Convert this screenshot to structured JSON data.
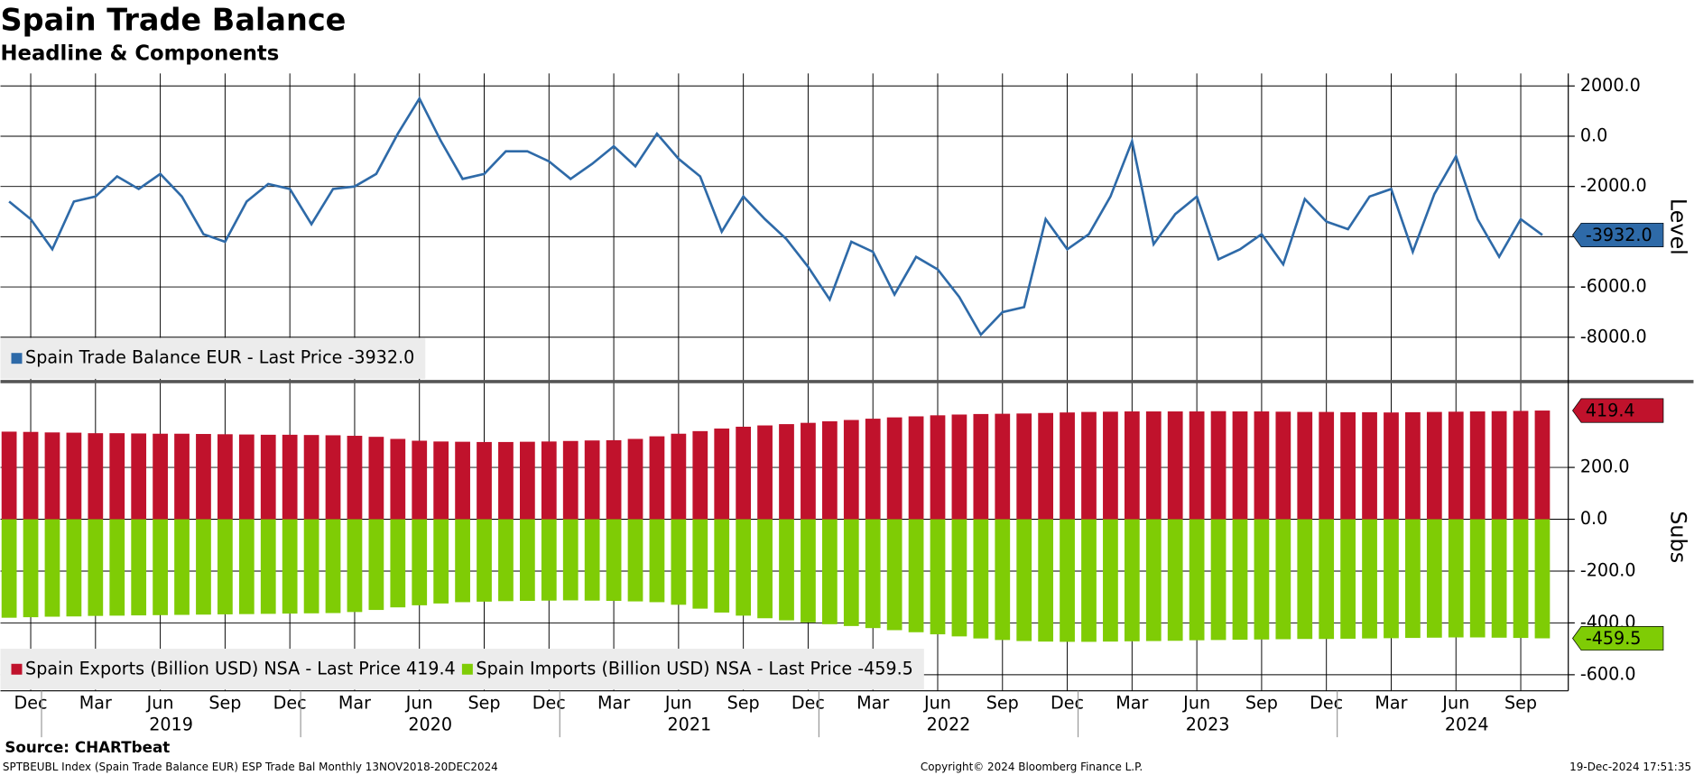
{
  "header": {
    "title": "Spain Trade Balance",
    "subtitle": "Headline & Components"
  },
  "x_axis": {
    "categories": [
      null,
      "Dec",
      null,
      null,
      "Mar",
      null,
      null,
      "Jun",
      null,
      null,
      "Sep",
      null,
      null,
      "Dec",
      null,
      null,
      "Mar",
      null,
      null,
      "Jun",
      null,
      null,
      "Sep",
      null,
      null,
      "Dec",
      null,
      null,
      "Mar",
      null,
      null,
      "Jun",
      null,
      null,
      "Sep",
      null,
      null,
      "Dec",
      null,
      null,
      "Mar",
      null,
      null,
      "Jun",
      null,
      null,
      "Sep",
      null,
      null,
      "Dec",
      null,
      null,
      "Mar",
      null,
      null,
      "Jun",
      null,
      null,
      "Sep",
      null,
      null,
      "Dec",
      null,
      null,
      "Mar",
      null,
      null,
      "Jun",
      null,
      null,
      "Sep",
      null
    ],
    "years": [
      "2019",
      "2020",
      "2021",
      "2022",
      "2023",
      "2024"
    ]
  },
  "chart_data": [
    {
      "type": "line",
      "axis_label": "Level",
      "ylim": [
        -9700,
        2500
      ],
      "yticks": [
        {
          "value": 2000,
          "label": "2000.0"
        },
        {
          "value": 0,
          "label": "0.0"
        },
        {
          "value": -2000,
          "label": "-2000.0"
        },
        {
          "value": -4000,
          "label": "-4000.0"
        },
        {
          "value": -6000,
          "label": "-6000.0"
        },
        {
          "value": -8000,
          "label": "-8000.0"
        }
      ],
      "grid": true,
      "series": [
        {
          "name": "Spain Trade Balance EUR - Last Price -3932.0",
          "color": "#2e6aa8",
          "last_label": "-3932.0",
          "values": [
            -2600,
            -3300,
            -4500,
            -2600,
            -2400,
            -1600,
            -2100,
            -1500,
            -2400,
            -3900,
            -4200,
            -2600,
            -1900,
            -2100,
            -3500,
            -2100,
            -2000,
            -1500,
            100,
            1500,
            -200,
            -1700,
            -1500,
            -600,
            -600,
            -1000,
            -1700,
            -1100,
            -400,
            -1200,
            100,
            -900,
            -1600,
            -3800,
            -2400,
            -3300,
            -4100,
            -5200,
            -6500,
            -4200,
            -4600,
            -6300,
            -4800,
            -5300,
            -6400,
            -7900,
            -7000,
            -6800,
            -3300,
            -4500,
            -3900,
            -2400,
            -200,
            -4300,
            -3100,
            -2400,
            -4900,
            -4500,
            -3900,
            -5100,
            -2500,
            -3400,
            -3700,
            -2400,
            -2100,
            -4600,
            -2300,
            -800,
            -3300,
            -4800,
            -3300,
            -3932
          ]
        }
      ]
    },
    {
      "type": "bar",
      "axis_label": "Subs",
      "ylim": [
        -662,
        525
      ],
      "yticks": [
        {
          "value": 200,
          "label": "200.0"
        },
        {
          "value": 0,
          "label": "0.0"
        },
        {
          "value": -200,
          "label": "-200.0"
        },
        {
          "value": -400,
          "label": "-400.0"
        },
        {
          "value": -600,
          "label": "-600.0"
        }
      ],
      "grid": true,
      "series": [
        {
          "name": "Spain Exports (Billion USD) NSA - Last Price 419.4",
          "color": "#c0122c",
          "last_label": "419.4",
          "values": [
            338,
            337,
            335,
            334,
            332,
            332,
            331,
            330,
            330,
            329,
            328,
            327,
            326,
            326,
            325,
            324,
            322,
            318,
            310,
            303,
            300,
            299,
            298,
            298,
            299,
            300,
            302,
            304,
            305,
            310,
            320,
            330,
            340,
            350,
            357,
            362,
            367,
            372,
            378,
            383,
            388,
            393,
            397,
            401,
            404,
            406,
            407,
            408,
            410,
            412,
            414,
            415,
            416,
            416,
            416,
            416,
            417,
            416,
            416,
            415,
            414,
            414,
            413,
            413,
            412,
            413,
            414,
            415,
            416,
            417,
            418,
            419.4
          ]
        },
        {
          "name": "Spain Imports (Billion USD) NSA - Last Price -459.5",
          "color": "#7fcc05",
          "last_label": "-459.5",
          "values": [
            -380,
            -378,
            -376,
            -375,
            -373,
            -372,
            -371,
            -370,
            -369,
            -368,
            -367,
            -366,
            -365,
            -364,
            -363,
            -362,
            -358,
            -350,
            -340,
            -332,
            -325,
            -320,
            -318,
            -316,
            -315,
            -314,
            -313,
            -314,
            -315,
            -317,
            -320,
            -330,
            -345,
            -360,
            -372,
            -382,
            -390,
            -398,
            -405,
            -412,
            -420,
            -428,
            -436,
            -444,
            -452,
            -460,
            -466,
            -470,
            -472,
            -473,
            -473,
            -472,
            -471,
            -470,
            -469,
            -467,
            -466,
            -465,
            -464,
            -463,
            -462,
            -462,
            -461,
            -460,
            -459,
            -458,
            -457,
            -456,
            -456,
            -457,
            -458,
            -459.5
          ]
        }
      ]
    }
  ],
  "footer": {
    "source": "Source: CHARTbeat",
    "index": "SPTBEUBL Index (Spain Trade Balance EUR) ESP Trade Bal  Monthly 13NOV2018-20DEC2024",
    "copyright": "Copyright© 2024 Bloomberg Finance L.P.",
    "timestamp": "19-Dec-2024 17:51:35"
  }
}
